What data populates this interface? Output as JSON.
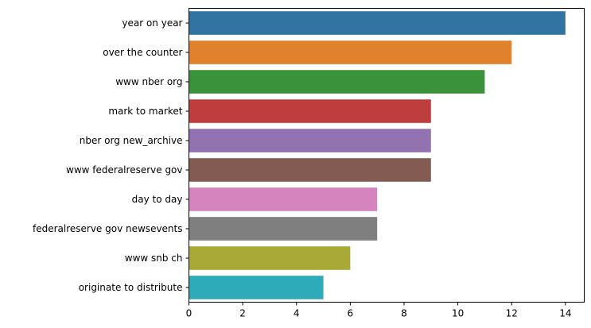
{
  "chart_data": {
    "type": "bar",
    "orientation": "horizontal",
    "title": "",
    "xlabel": "",
    "ylabel": "",
    "categories": [
      "year on year",
      "over the counter",
      "www nber org",
      "mark to market",
      "nber org new_archive",
      "www federalreserve gov",
      "day to day",
      "federalreserve gov newsevents",
      "www snb ch",
      "originate to distribute"
    ],
    "values": [
      14,
      12,
      11,
      9,
      9,
      9,
      7,
      7,
      6,
      5
    ],
    "colors": [
      "#3274a1",
      "#e1812c",
      "#3a923a",
      "#c03d3e",
      "#9372b2",
      "#845b53",
      "#d684bd",
      "#7f7f7f",
      "#a9aa35",
      "#2eabb8"
    ],
    "xlim": [
      0,
      14.7
    ],
    "xticks": [
      0,
      2,
      4,
      6,
      8,
      10,
      12,
      14
    ],
    "xtick_labels": [
      "0",
      "2",
      "4",
      "6",
      "8",
      "10",
      "12",
      "14"
    ],
    "grid": false,
    "legend": "none"
  }
}
